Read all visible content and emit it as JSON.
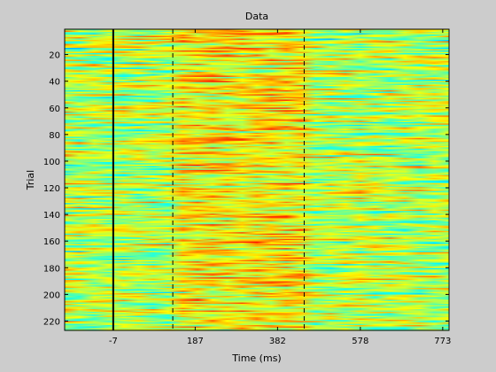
{
  "chart_data": {
    "type": "heatmap",
    "title": "Data",
    "xlabel": "Time (ms)",
    "ylabel": "Trial",
    "xticks": [
      "-7",
      "187",
      "382",
      "578",
      "773"
    ],
    "xtick_values": [
      -7,
      187,
      382,
      578,
      773
    ],
    "yticks": [
      "20",
      "40",
      "60",
      "80",
      "100",
      "120",
      "140",
      "160",
      "180",
      "200",
      "220"
    ],
    "ytick_values": [
      20,
      40,
      60,
      80,
      100,
      120,
      140,
      160,
      180,
      200,
      220
    ],
    "xlim": [
      -122,
      788
    ],
    "ylim": [
      1,
      227
    ],
    "y_direction": "reversed",
    "n_trials": 227,
    "colormap": "jet",
    "vertical_markers": [
      {
        "x": -7,
        "style": "solid"
      },
      {
        "x": 134,
        "style": "dashed"
      },
      {
        "x": 445,
        "style": "dashed"
      }
    ],
    "grid": false
  },
  "colors": {
    "background": "#cccccc",
    "axes_border": "#000000",
    "solid_marker": "#000000",
    "dashed_marker": "#000000"
  }
}
